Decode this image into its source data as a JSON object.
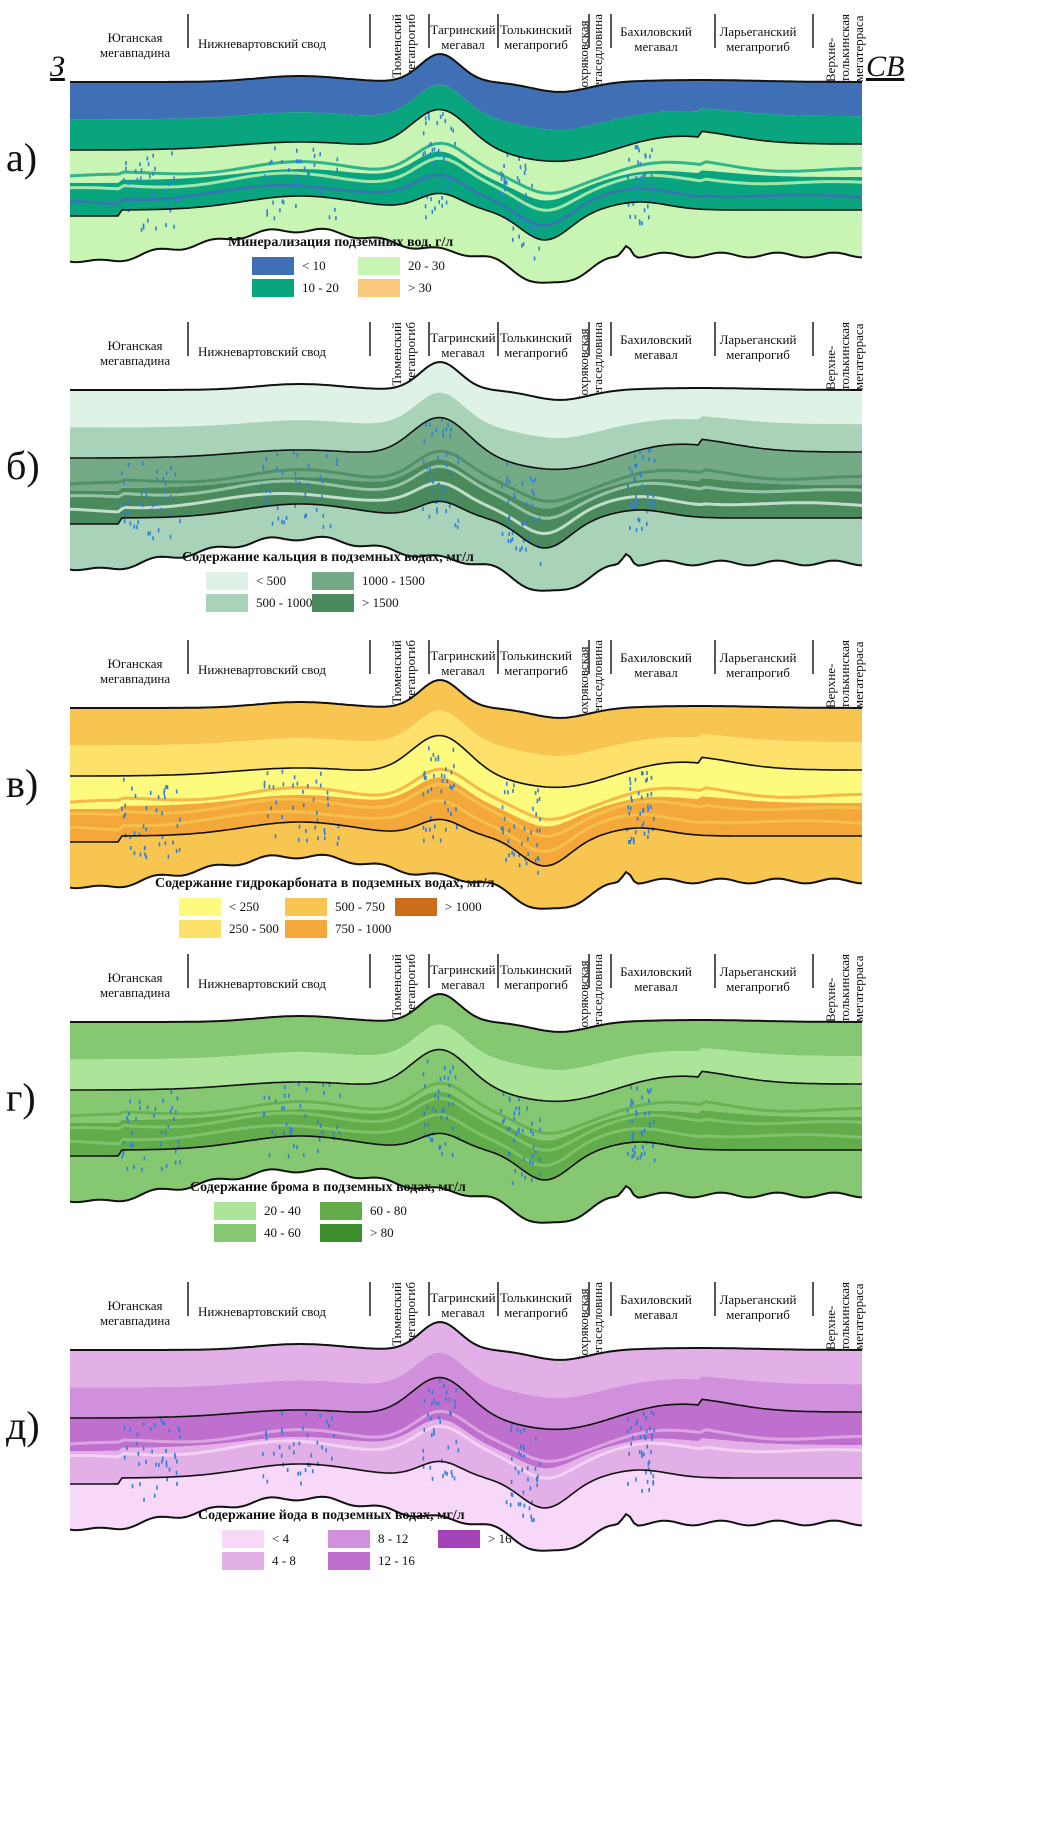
{
  "directions": {
    "west": "З",
    "northeast": "СВ"
  },
  "regions": [
    {
      "key": "yugan",
      "label": "Юганская\nмегавпадина"
    },
    {
      "key": "nizhnevart",
      "label": "Нижневартовский свод"
    },
    {
      "key": "tyumen",
      "label": "Тюменский\nмегапрогиб"
    },
    {
      "key": "tagrin",
      "label": "Тагринский\nмегавал"
    },
    {
      "key": "tolkin",
      "label": "Толькинский\nмегапрогиб"
    },
    {
      "key": "khokhr",
      "label": "Хохряковская\nмегаседловина"
    },
    {
      "key": "bakhil",
      "label": "Бахиловский\nмегавал"
    },
    {
      "key": "laryegan",
      "label": "Ларьеганский\nмегапрогиб"
    },
    {
      "key": "verkhne",
      "label": "Верхне-\nтолькинская\nмегатерраса"
    }
  ],
  "panels": [
    {
      "letter": "а)",
      "legend_title": "Минерализация подземных вод, г/л",
      "legend": [
        {
          "label": "< 10",
          "color": "#3f6fb5"
        },
        {
          "label": "10 - 20",
          "color": "#08a57f"
        },
        {
          "label": "20 - 30",
          "color": "#c9f5b4"
        },
        {
          "label": "> 30",
          "color": "#fbc77b"
        }
      ],
      "layers": [
        "#3f6fb5",
        "#08a57f",
        "#c9f5b4",
        "#08a57f",
        "#c9f5b4"
      ]
    },
    {
      "letter": "б)",
      "legend_title": "Содержание кальция в подземных водах, мг/л",
      "legend": [
        {
          "label": "< 500",
          "color": "#dff2e6"
        },
        {
          "label": "500 - 1000",
          "color": "#a9d3b8"
        },
        {
          "label": "1000 - 1500",
          "color": "#74aa86"
        },
        {
          "label": "> 1500",
          "color": "#4a8a5c"
        }
      ],
      "layers": [
        "#dff2e6",
        "#a9d3b8",
        "#74aa86",
        "#4a8a5c",
        "#a9d3b8"
      ]
    },
    {
      "letter": "в)",
      "legend_title": "Содержание гидрокарбоната в подземных водах, мг/л",
      "legend": [
        {
          "label": "< 250",
          "color": "#fdfa7e"
        },
        {
          "label": "250 - 500",
          "color": "#fde16b"
        },
        {
          "label": "500 - 750",
          "color": "#f8c550"
        },
        {
          "label": "750 - 1000",
          "color": "#f4a83a"
        },
        {
          "label": "> 1000",
          "color": "#cc6d1a"
        }
      ],
      "layers": [
        "#f8c550",
        "#fde16b",
        "#fdfa7e",
        "#f4a83a",
        "#f8c550"
      ]
    },
    {
      "letter": "г)",
      "legend_title": "Содержание брома в подземных водах, мг/л",
      "legend": [
        {
          "label": "20 - 40",
          "color": "#ace49a"
        },
        {
          "label": "40 - 60",
          "color": "#86c872"
        },
        {
          "label": "60 - 80",
          "color": "#62ac4c"
        },
        {
          "label": "> 80",
          "color": "#3d8f2e"
        }
      ],
      "layers": [
        "#86c872",
        "#ace49a",
        "#86c872",
        "#62ac4c",
        "#86c872"
      ]
    },
    {
      "letter": "д)",
      "legend_title": "Содержание йода в подземных водах, мг/л",
      "legend": [
        {
          "label": "< 4",
          "color": "#f8d8f8"
        },
        {
          "label": "4 - 8",
          "color": "#e2b0e6"
        },
        {
          "label": "8 - 12",
          "color": "#d090dc"
        },
        {
          "label": "12 - 16",
          "color": "#bf6fcd"
        },
        {
          "label": "> 16",
          "color": "#a642b8"
        }
      ],
      "layers": [
        "#e2b0e6",
        "#d090dc",
        "#bf6fcd",
        "#e2b0e6",
        "#f8d8f8"
      ]
    }
  ]
}
